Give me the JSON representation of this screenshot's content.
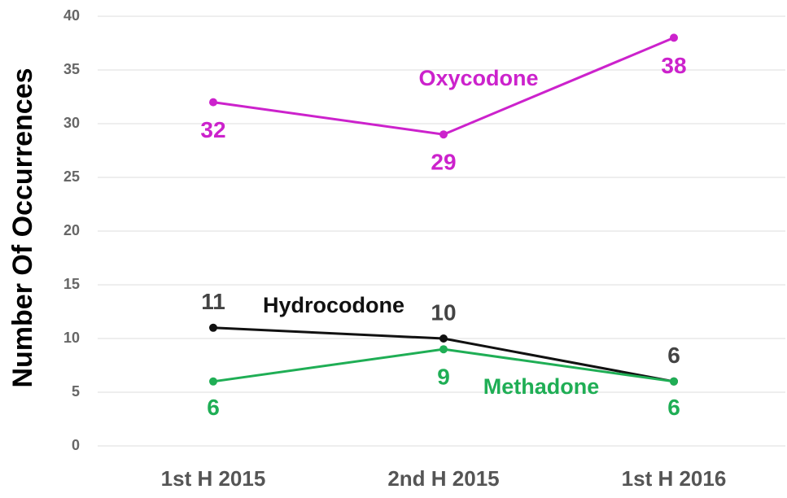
{
  "chart_data": {
    "type": "line",
    "y_label": "Number Of Occurrences",
    "categories": [
      "1st H 2015",
      "2nd H 2015",
      "1st H 2016"
    ],
    "series": [
      {
        "name": "Oxycodone",
        "color": "#cc22cc",
        "values": [
          32,
          29,
          38
        ]
      },
      {
        "name": "Hydrocodone",
        "color": "#111111",
        "values": [
          11,
          10,
          6
        ]
      },
      {
        "name": "Methadone",
        "color": "#1fae55",
        "values": [
          6,
          9,
          6
        ]
      }
    ],
    "ylim": [
      0,
      40
    ],
    "yticks": [
      0,
      5,
      10,
      15,
      20,
      25,
      30,
      35,
      40
    ],
    "grid": true
  }
}
